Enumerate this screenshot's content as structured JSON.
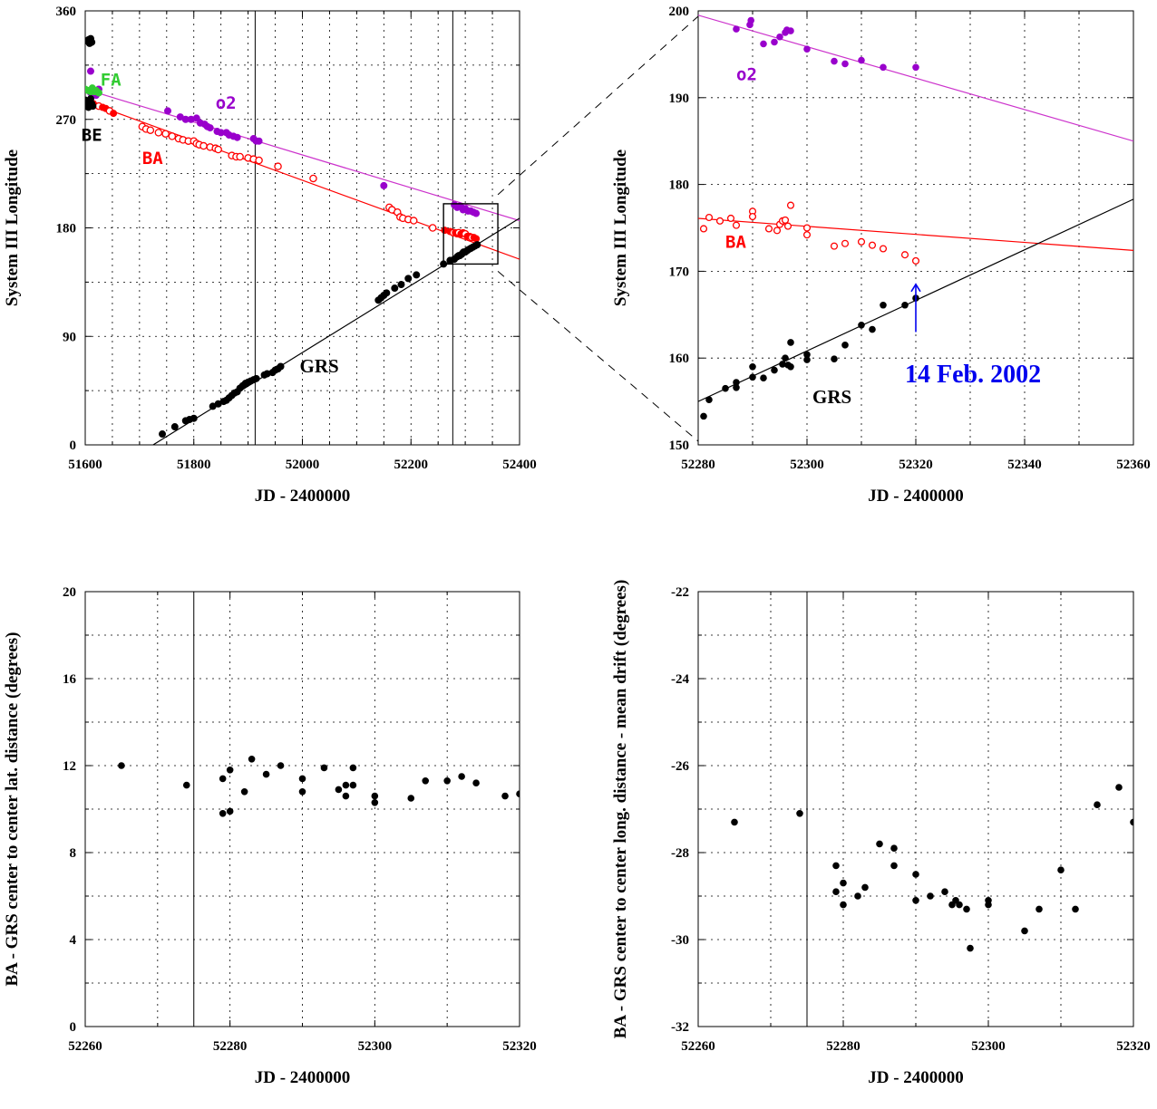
{
  "colors": {
    "black": "#000000",
    "red": "#ff0000",
    "purple": "#9900cc",
    "magenta_line": "#cc33cc",
    "green": "#33cc33",
    "blue": "#0000ee"
  },
  "chart_data": [
    {
      "id": "tl",
      "type": "scatter",
      "xlabel": "JD - 2400000",
      "ylabel": "System III Longitude",
      "xlim": [
        51600,
        52400
      ],
      "ylim": [
        0,
        360
      ],
      "xticks": [
        "51600",
        "51800",
        "52000",
        "52200",
        "52400"
      ],
      "yticks": [
        "0",
        "90",
        "180",
        "270",
        "360"
      ],
      "vlines": [
        51913,
        52277
      ],
      "annotations": [
        {
          "text": "FA",
          "x": 51628,
          "y": 298,
          "color": "green"
        },
        {
          "text": "o2",
          "x": 51840,
          "y": 279,
          "color": "purple"
        },
        {
          "text": "BE",
          "x": 51593,
          "y": 252,
          "color": "black"
        },
        {
          "text": "BA",
          "x": 51705,
          "y": 233,
          "color": "red"
        },
        {
          "text": "GRS",
          "x": 51995,
          "y": 60,
          "color": "black"
        }
      ],
      "series": [
        {
          "color": "purple",
          "fit": {
            "x0": 51600,
            "y0": 295,
            "x1": 52400,
            "y1": 186
          },
          "fit_color": "magenta_line"
        },
        {
          "color": "red",
          "fit": {
            "x0": 51600,
            "y0": 285,
            "x1": 52400,
            "y1": 154
          }
        },
        {
          "color": "black",
          "fit": {
            "x0": 51725,
            "y0": 0,
            "x1": 52400,
            "y1": 188
          }
        },
        {
          "name": "O2",
          "color": "purple",
          "marker": "filled",
          "x": [
            51610,
            51610,
            51620,
            51622,
            51625,
            51752,
            51775,
            51785,
            51795,
            51805,
            51812,
            51820,
            51825,
            51830,
            51843,
            51850,
            51860,
            51865,
            51873,
            51880,
            51910,
            51915,
            51920,
            52150,
            52280,
            52285,
            52290,
            52293,
            52296,
            52300,
            52305,
            52310,
            52315,
            52320
          ],
          "y": [
            310,
            292,
            290,
            293,
            295,
            277,
            272,
            270,
            270,
            271,
            267,
            266,
            264,
            263,
            260,
            259,
            259,
            257,
            256,
            255,
            254,
            252,
            252,
            215,
            199,
            197,
            198,
            197,
            195,
            196,
            194,
            194,
            193,
            192
          ]
        },
        {
          "name": "FA",
          "color": "green",
          "marker": "filled",
          "x": [
            51600,
            51605,
            51610,
            51613,
            51617,
            51620,
            51625
          ],
          "y": [
            295,
            294,
            293,
            296,
            293,
            294,
            292
          ]
        },
        {
          "name": "BA",
          "color": "red",
          "marker": "mixed",
          "x": [
            51615,
            51625,
            51632,
            51638,
            51645,
            51652,
            51705,
            51712,
            51720,
            51735,
            51748,
            51760,
            51772,
            51780,
            51790,
            51800,
            51805,
            51810,
            51818,
            51830,
            51840,
            51845,
            51870,
            51878,
            51885,
            51900,
            51910,
            51920,
            51955,
            52020,
            52160,
            52165,
            52175,
            52180,
            52185,
            52195,
            52205,
            52240,
            52262,
            52272,
            52278,
            52282,
            52285,
            52288,
            52292,
            52296,
            52300,
            52304,
            52308,
            52312,
            52316,
            52320
          ],
          "y": [
            283,
            281,
            280,
            279,
            277,
            275,
            264,
            262,
            261,
            259,
            258,
            256,
            254,
            253,
            252,
            252,
            250,
            249,
            248,
            247,
            246,
            245,
            240,
            239,
            239,
            238,
            237,
            236,
            231,
            221,
            197,
            195,
            193,
            189,
            188,
            187,
            186,
            180,
            178,
            177,
            176,
            176,
            175,
            176,
            175,
            176,
            175,
            173,
            173,
            172,
            172,
            171
          ]
        },
        {
          "name": "BE",
          "color": "black",
          "marker": "filled",
          "x": [
            51600,
            51602,
            51604,
            51606,
            51608,
            51610,
            51612,
            51614,
            51604,
            51606,
            51608,
            51610,
            51612
          ],
          "y": [
            286,
            284,
            282,
            280,
            284,
            287,
            283,
            281,
            335,
            336,
            333,
            337,
            334
          ]
        },
        {
          "name": "GRS",
          "color": "black",
          "marker": "filled",
          "x": [
            51742,
            51765,
            51785,
            51792,
            51800,
            51835,
            51845,
            51855,
            51860,
            51865,
            51870,
            51875,
            51880,
            51885,
            51890,
            51895,
            51900,
            51905,
            51910,
            51915,
            51930,
            51935,
            51945,
            51950,
            51955,
            51960,
            52140,
            52145,
            52150,
            52155,
            52170,
            52182,
            52195,
            52210,
            52260,
            52272,
            52280,
            52285,
            52288,
            52290,
            52293,
            52295,
            52297,
            52300,
            52303,
            52306,
            52310,
            52314,
            52318,
            52322
          ],
          "y": [
            9,
            15,
            20,
            21,
            22,
            32,
            34,
            36,
            37,
            39,
            41,
            43,
            44,
            47,
            49,
            51,
            52,
            53,
            54,
            55,
            58,
            59,
            60,
            62,
            63,
            65,
            120,
            122,
            124,
            126,
            130,
            133,
            138,
            141,
            150,
            153,
            154,
            156,
            157,
            157,
            158,
            159,
            160,
            160,
            161,
            162,
            163,
            164,
            165,
            166
          ]
        }
      ]
    },
    {
      "id": "tr",
      "type": "scatter",
      "xlabel": "JD - 2400000",
      "ylabel": "System III Longitude",
      "xlim": [
        52280,
        52360
      ],
      "ylim": [
        150,
        200
      ],
      "xticks": [
        "52280",
        "52300",
        "52320",
        "52340",
        "52360"
      ],
      "yticks": [
        "150",
        "160",
        "170",
        "180",
        "190",
        "200"
      ],
      "annotations": [
        {
          "text": "o2",
          "x": 52287,
          "y": 192,
          "color": "purple"
        },
        {
          "text": "BA",
          "x": 52285,
          "y": 172.7,
          "color": "red"
        },
        {
          "text": "GRS",
          "x": 52301,
          "y": 154.8,
          "color": "black"
        },
        {
          "text": "14 Feb. 2002",
          "x": 52320,
          "y": 157.2,
          "color": "blue",
          "arrow_from": 163,
          "arrow_to": 168.5
        }
      ],
      "series": [
        {
          "color": "purple",
          "fit": {
            "x0": 52280,
            "y0": 199.5,
            "x1": 52360,
            "y1": 185.0
          },
          "fit_color": "magenta_line"
        },
        {
          "color": "red",
          "fit": {
            "x0": 52280,
            "y0": 176.1,
            "x1": 52360,
            "y1": 172.4
          }
        },
        {
          "color": "black",
          "fit": {
            "x0": 52280,
            "y0": 155.0,
            "x1": 52360,
            "y1": 178.3
          }
        },
        {
          "name": "O2",
          "color": "purple",
          "marker": "filled",
          "x": [
            52287,
            52289.5,
            52289.7,
            52292,
            52294,
            52295,
            52296,
            52296.3,
            52297,
            52300,
            52305,
            52307,
            52310,
            52314,
            52320
          ],
          "y": [
            197.9,
            198.4,
            198.9,
            196.2,
            196.4,
            197.0,
            197.5,
            197.8,
            197.7,
            195.6,
            194.2,
            193.9,
            194.3,
            193.5,
            193.5
          ]
        },
        {
          "name": "BA",
          "color": "red",
          "marker": "open",
          "x": [
            52281,
            52282,
            52284,
            52286,
            52287,
            52290,
            52290,
            52293,
            52294.5,
            52295,
            52295.5,
            52296,
            52296.5,
            52297,
            52300,
            52300,
            52305,
            52307,
            52310,
            52312,
            52314,
            52318,
            52320
          ],
          "y": [
            174.9,
            176.2,
            175.8,
            176.1,
            175.3,
            176.9,
            176.3,
            174.9,
            174.7,
            175.4,
            175.8,
            175.9,
            175.2,
            177.6,
            174.2,
            175.0,
            172.9,
            173.2,
            173.4,
            173.0,
            172.6,
            171.9,
            171.2
          ]
        },
        {
          "name": "GRS",
          "color": "black",
          "marker": "filled",
          "x": [
            52281,
            52282,
            52285,
            52287,
            52287,
            52290,
            52290,
            52292,
            52294,
            52295.5,
            52296,
            52296.5,
            52297,
            52297,
            52300,
            52300,
            52305,
            52307,
            52310,
            52312,
            52314,
            52318,
            52320
          ],
          "y": [
            153.3,
            155.2,
            156.5,
            156.6,
            157.2,
            157.8,
            159.0,
            157.7,
            158.6,
            159.3,
            160.0,
            159.2,
            161.8,
            159.0,
            160.4,
            159.8,
            159.9,
            161.5,
            163.8,
            163.3,
            166.1,
            166.1,
            166.9
          ]
        }
      ]
    },
    {
      "id": "bl",
      "type": "scatter",
      "xlabel": "JD - 2400000",
      "ylabel": "BA - GRS center to center lat. distance (degrees)",
      "xlim": [
        52260,
        52320
      ],
      "ylim": [
        0,
        20
      ],
      "xticks": [
        "52260",
        "52280",
        "52300",
        "52320"
      ],
      "yticks": [
        "0",
        "4",
        "8",
        "12",
        "16",
        "20"
      ],
      "vlines": [
        52275
      ],
      "series": [
        {
          "color": "black",
          "marker": "filled",
          "x": [
            52265,
            52274,
            52279,
            52279,
            52280,
            52280,
            52282,
            52283,
            52285,
            52287,
            52290,
            52290,
            52293,
            52295,
            52296,
            52296,
            52297,
            52297,
            52300,
            52300,
            52305,
            52307,
            52310,
            52312,
            52314,
            52318,
            52320
          ],
          "y": [
            12.0,
            11.1,
            11.4,
            9.8,
            9.9,
            11.8,
            10.8,
            12.3,
            11.6,
            12.0,
            10.8,
            11.4,
            11.9,
            10.9,
            10.6,
            11.1,
            11.1,
            11.9,
            10.3,
            10.6,
            10.5,
            11.3,
            11.3,
            11.5,
            11.2,
            10.6,
            10.7
          ]
        }
      ]
    },
    {
      "id": "br",
      "type": "scatter",
      "xlabel": "JD - 2400000",
      "ylabel": "BA - GRS center to center long. distance - mean drift (degrees)",
      "xlim": [
        52260,
        52320
      ],
      "ylim": [
        -32,
        -22
      ],
      "xticks": [
        "52260",
        "52280",
        "52300",
        "52320"
      ],
      "yticks": [
        "-32",
        "-30",
        "-28",
        "-26",
        "-24",
        "-22"
      ],
      "vlines": [
        52275
      ],
      "series": [
        {
          "color": "black",
          "marker": "filled",
          "x": [
            52265,
            52274,
            52279,
            52279,
            52280,
            52280,
            52282,
            52283,
            52285,
            52287,
            52287,
            52290,
            52290,
            52292,
            52294,
            52295,
            52295.5,
            52296,
            52297,
            52297.5,
            52300,
            52300,
            52305,
            52307,
            52310,
            52312,
            52315,
            52318,
            52320
          ],
          "y": [
            -27.3,
            -27.1,
            -28.3,
            -28.9,
            -28.7,
            -29.2,
            -29.0,
            -28.8,
            -27.8,
            -27.9,
            -28.3,
            -28.5,
            -29.1,
            -29.0,
            -28.9,
            -29.2,
            -29.1,
            -29.2,
            -29.3,
            -30.2,
            -29.1,
            -29.2,
            -29.8,
            -29.3,
            -28.4,
            -29.3,
            -26.9,
            -26.5,
            -27.3
          ]
        }
      ]
    }
  ]
}
